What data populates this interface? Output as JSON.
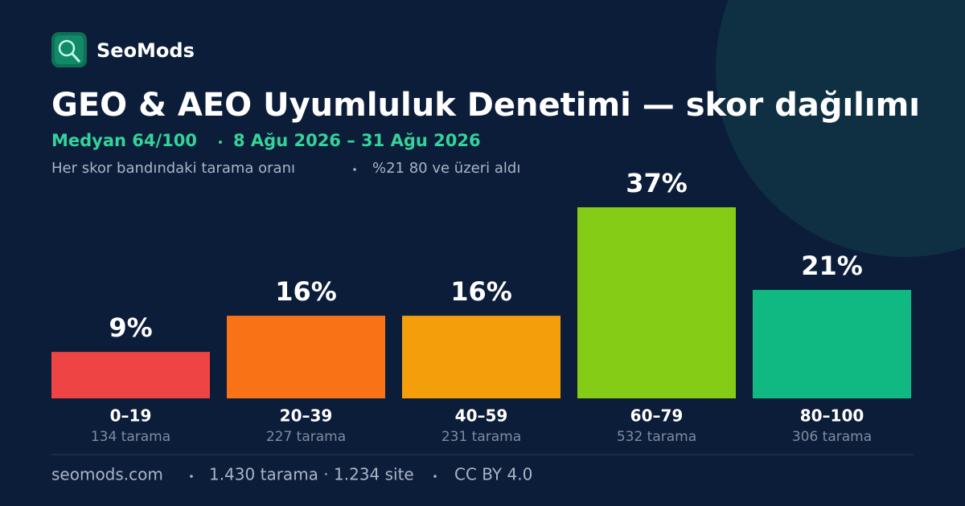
{
  "brand": "SeoMods",
  "chart_data": {
    "type": "bar",
    "title": "GEO & AEO Uyumluluk Denetimi — skor dağılımı",
    "subtitle": [
      "Medyan 64/100",
      "8 Ağu 2026 – 31 Ağu 2026"
    ],
    "notes": [
      "Her skor bandındaki tarama oranı",
      "%21 80 ve üzeri aldı"
    ],
    "categories": [
      "0–19",
      "20–39",
      "40–59",
      "60–79",
      "80–100"
    ],
    "values": [
      9,
      16,
      16,
      37,
      21
    ],
    "value_labels": [
      "9%",
      "16%",
      "16%",
      "37%",
      "21%"
    ],
    "counts": [
      "134 tarama",
      "227 tarama",
      "231 tarama",
      "532 tarama",
      "306 tarama"
    ],
    "colors": [
      "#ef4444",
      "#f97316",
      "#f59e0b",
      "#84cc16",
      "#10b981"
    ]
  },
  "footer": [
    "seomods.com",
    "1.430 tarama · 1.234 site",
    "CC BY 4.0"
  ]
}
